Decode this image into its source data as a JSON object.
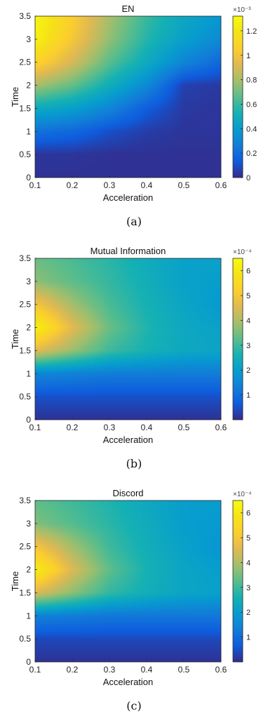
{
  "chart_data": [
    {
      "type": "heatmap",
      "title": "EN",
      "xlabel": "Acceleration",
      "ylabel": "Time",
      "xlim": [
        0.1,
        0.6
      ],
      "ylim": [
        0,
        3.5
      ],
      "x_ticks": [
        "0.1",
        "0.2",
        "0.3",
        "0.4",
        "0.5",
        "0.6"
      ],
      "y_ticks": [
        "0",
        "0.5",
        "1",
        "1.5",
        "2",
        "2.5",
        "3",
        "3.5"
      ],
      "colorbar_ticks": [
        "0",
        "0.2",
        "0.4",
        "0.6",
        "0.8",
        "1",
        "1.2"
      ],
      "colorbar_tick_values": [
        0,
        0.2,
        0.4,
        0.6,
        0.8,
        1.0,
        1.2
      ],
      "colorbar_exponent": "×10⁻³",
      "colorbar_range": [
        0,
        1.32
      ],
      "caption": "(a)",
      "grid": {
        "x": [
          0.1,
          0.2,
          0.3,
          0.4,
          0.5,
          0.6
        ],
        "y": [
          0,
          0.5,
          1,
          1.5,
          2,
          2.5,
          3,
          3.5
        ],
        "z": [
          [
            0.02,
            0.02,
            0.02,
            0.02,
            0.02,
            0.02
          ],
          [
            0.03,
            0.03,
            0.02,
            0.02,
            0.02,
            0.02
          ],
          [
            0.22,
            0.18,
            0.1,
            0.05,
            0.03,
            0.03
          ],
          [
            0.48,
            0.42,
            0.3,
            0.14,
            0.04,
            0.03
          ],
          [
            0.8,
            0.68,
            0.5,
            0.32,
            0.06,
            0.04
          ],
          [
            1.1,
            0.9,
            0.66,
            0.48,
            0.3,
            0.18
          ],
          [
            1.27,
            1.02,
            0.76,
            0.56,
            0.42,
            0.32
          ],
          [
            1.3,
            1.06,
            0.8,
            0.6,
            0.46,
            0.38
          ]
        ]
      }
    },
    {
      "type": "heatmap",
      "title": "Mutual Information",
      "xlabel": "Acceleration",
      "ylabel": "Time",
      "xlim": [
        0.1,
        0.6
      ],
      "ylim": [
        0,
        3.5
      ],
      "x_ticks": [
        "0.1",
        "0.2",
        "0.3",
        "0.4",
        "0.5",
        "0.6"
      ],
      "y_ticks": [
        "0",
        "0.5",
        "1",
        "1.5",
        "2",
        "2.5",
        "3",
        "3.5"
      ],
      "colorbar_ticks": [
        "1",
        "2",
        "3",
        "4",
        "5",
        "6"
      ],
      "colorbar_tick_values": [
        1,
        2,
        3,
        4,
        5,
        6
      ],
      "colorbar_exponent": "×10⁻⁴",
      "colorbar_range": [
        0,
        6.5
      ],
      "caption": "(b)",
      "grid": {
        "x": [
          0.1,
          0.2,
          0.3,
          0.4,
          0.5,
          0.6
        ],
        "y": [
          0,
          0.5,
          1,
          1.5,
          2,
          2.5,
          3,
          3.5
        ],
        "z": [
          [
            0.1,
            0.1,
            0.1,
            0.1,
            0.1,
            0.1
          ],
          [
            0.5,
            0.5,
            0.5,
            0.5,
            0.5,
            0.5
          ],
          [
            1.5,
            1.4,
            1.3,
            1.3,
            1.3,
            1.3
          ],
          [
            4.6,
            3.8,
            3.0,
            2.6,
            2.3,
            2.2
          ],
          [
            6.3,
            4.6,
            3.4,
            2.7,
            2.3,
            2.1
          ],
          [
            5.0,
            3.9,
            3.1,
            2.6,
            2.2,
            1.9
          ],
          [
            3.7,
            3.3,
            2.9,
            2.5,
            2.1,
            2.0
          ],
          [
            3.4,
            3.1,
            2.8,
            2.4,
            2.1,
            2.1
          ]
        ]
      }
    },
    {
      "type": "heatmap",
      "title": "Discord",
      "xlabel": "Acceleration",
      "ylabel": "Time",
      "xlim": [
        0.1,
        0.6
      ],
      "ylim": [
        0,
        3.5
      ],
      "x_ticks": [
        "0.1",
        "0.2",
        "0.3",
        "0.4",
        "0.5",
        "0.6"
      ],
      "y_ticks": [
        "0",
        "0.5",
        "1",
        "1.5",
        "2",
        "2.5",
        "3",
        "3.5"
      ],
      "colorbar_ticks": [
        "1",
        "2",
        "3",
        "4",
        "5",
        "6"
      ],
      "colorbar_tick_values": [
        1,
        2,
        3,
        4,
        5,
        6
      ],
      "colorbar_exponent": "×10⁻⁴",
      "colorbar_range": [
        0,
        6.5
      ],
      "caption": "(c)",
      "grid": {
        "x": [
          0.1,
          0.2,
          0.3,
          0.4,
          0.5,
          0.6
        ],
        "y": [
          0,
          0.5,
          1,
          1.5,
          2,
          2.5,
          3,
          3.5
        ],
        "z": [
          [
            0.1,
            0.1,
            0.1,
            0.1,
            0.1,
            0.1
          ],
          [
            0.4,
            0.4,
            0.4,
            0.4,
            0.4,
            0.4
          ],
          [
            1.4,
            1.3,
            1.2,
            1.2,
            1.2,
            1.2
          ],
          [
            4.5,
            3.7,
            2.9,
            2.5,
            2.2,
            2.1
          ],
          [
            6.2,
            4.5,
            3.3,
            2.6,
            2.2,
            2.0
          ],
          [
            5.0,
            3.9,
            3.0,
            2.5,
            2.1,
            1.8
          ],
          [
            3.6,
            3.2,
            2.8,
            2.4,
            2.0,
            1.9
          ],
          [
            3.3,
            3.0,
            2.7,
            2.3,
            2.0,
            2.0
          ]
        ]
      }
    }
  ]
}
